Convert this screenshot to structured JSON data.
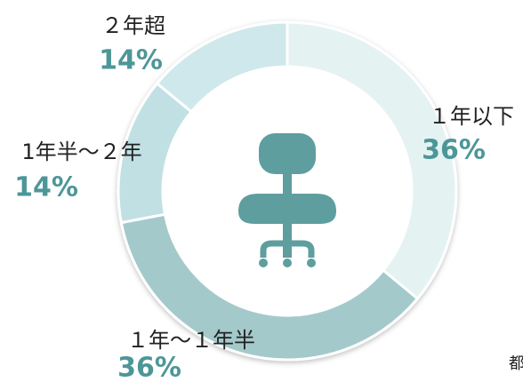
{
  "chart_data": {
    "type": "pie",
    "categories": [
      "１年以下",
      "１年～１年半",
      "1年半～２年",
      "２年超"
    ],
    "values": [
      36,
      36,
      14,
      14
    ],
    "value_labels": [
      "36%",
      "36%",
      "14%",
      "14%"
    ],
    "colors": [
      "#e4f2f2",
      "#a4c9ca",
      "#c1e0e4",
      "#cfe8eb"
    ],
    "annotations": [
      "都"
    ]
  }
}
